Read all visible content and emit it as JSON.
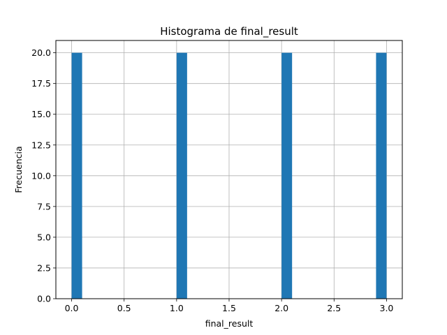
{
  "chart_data": {
    "type": "bar",
    "title": "Histograma de final_result",
    "xlabel": "final_result",
    "ylabel": "Frecuencia",
    "xlim": [
      -0.15,
      3.15
    ],
    "ylim": [
      0,
      21
    ],
    "grid": true,
    "bin_width": 0.1,
    "bars": [
      {
        "x0": 0.0,
        "x1": 0.1,
        "value": 20
      },
      {
        "x0": 1.0,
        "x1": 1.1,
        "value": 20
      },
      {
        "x0": 2.0,
        "x1": 2.1,
        "value": 20
      },
      {
        "x0": 2.9,
        "x1": 3.0,
        "value": 20
      }
    ],
    "xticks": [
      "0.0",
      "0.5",
      "1.0",
      "1.5",
      "2.0",
      "2.5",
      "3.0"
    ],
    "xtick_values": [
      0.0,
      0.5,
      1.0,
      1.5,
      2.0,
      2.5,
      3.0
    ],
    "yticks": [
      "0.0",
      "2.5",
      "5.0",
      "7.5",
      "10.0",
      "12.5",
      "15.0",
      "17.5",
      "20.0"
    ],
    "ytick_values": [
      0.0,
      2.5,
      5.0,
      7.5,
      10.0,
      12.5,
      15.0,
      17.5,
      20.0
    ],
    "bar_color": "#1f77b4",
    "grid_color": "#b0b0b0"
  }
}
